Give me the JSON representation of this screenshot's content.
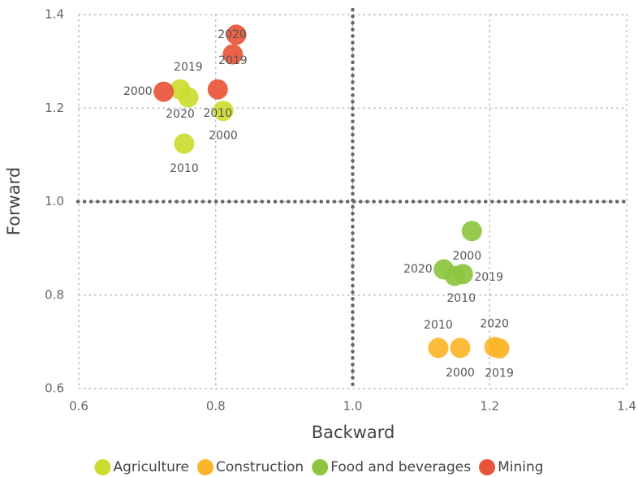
{
  "chart_data": {
    "type": "scatter",
    "xlabel": "Backward",
    "ylabel": "Forward",
    "xlim": [
      0.6,
      1.4
    ],
    "ylim": [
      0.6,
      1.4
    ],
    "xticks": [
      0.6,
      0.8,
      {
        "value": 1,
        "label": "1.0"
      },
      1.2,
      1.4
    ],
    "yticks": [
      0.6,
      0.8,
      {
        "value": 1,
        "label": "1.0"
      },
      1.2,
      1.4
    ],
    "grid": true,
    "vlines": [
      1
    ],
    "hlines": [
      1
    ],
    "legend": "bottom",
    "series": [
      {
        "name": "Agriculture",
        "color": "#cbdc2f",
        "x": [
          0.811,
          0.754,
          0.748,
          0.76
        ],
        "y": [
          1.194,
          1.124,
          1.24,
          1.223
        ],
        "labels": [
          "2000",
          "2010",
          "2019",
          "2020"
        ]
      },
      {
        "name": "Construction",
        "color": "#fbb52a",
        "x": [
          1.157,
          1.125,
          1.214,
          1.207
        ],
        "y": [
          0.687,
          0.687,
          0.686,
          0.689
        ],
        "labels": [
          "2000",
          "2010",
          "2019",
          "2020"
        ]
      },
      {
        "name": "Food and beverages",
        "color": "#8cc540",
        "x": [
          1.174,
          1.149,
          1.161,
          1.133
        ],
        "y": [
          0.937,
          0.841,
          0.845,
          0.855
        ],
        "labels": [
          "2000",
          "2010",
          "2019",
          "2020"
        ]
      },
      {
        "name": "Mining",
        "color": "#e9553a",
        "x": [
          0.724,
          0.803,
          0.825,
          0.83
        ],
        "y": [
          1.235,
          1.24,
          1.315,
          1.357
        ],
        "labels": [
          "2000",
          "2010",
          "2019",
          "2020"
        ]
      }
    ]
  }
}
